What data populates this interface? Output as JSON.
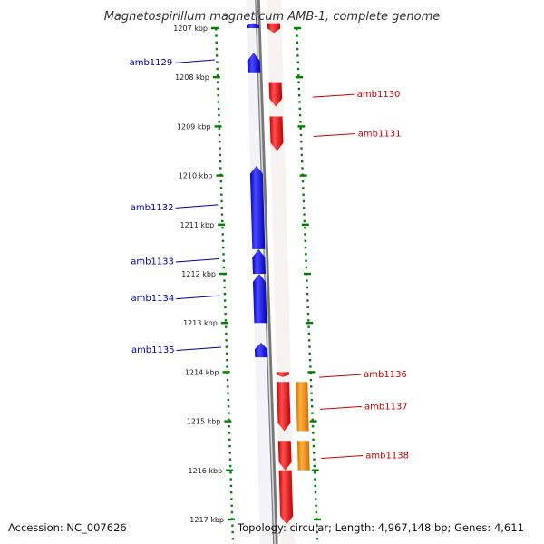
{
  "title": "Magnetospirillum magneticum AMB-1, complete genome",
  "accession": "Accession: NC_007626",
  "topology": "Topology: circular; Length: 4,967,148 bp; Genes: 4,611",
  "colors": {
    "minus_strand": "#0000ee",
    "plus_strand": "#ee0000",
    "plus_outer": "#ff8c00",
    "scale": "#008000",
    "backbone": "#808080",
    "label_minus": "#0000aa",
    "label_plus": "#cc0000"
  },
  "chart_data": {
    "type": "genome-map",
    "region_kbp": [
      1206.9,
      1217.1
    ],
    "scale_ticks_kbp": [
      1207,
      1208,
      1209,
      1210,
      1211,
      1212,
      1213,
      1214,
      1215,
      1216,
      1217
    ],
    "scale_labels": [
      "1207 kbp",
      "1208 kbp",
      "1209 kbp",
      "1210 kbp",
      "1211 kbp",
      "1212 kbp",
      "1213 kbp",
      "1214 kbp",
      "1215 kbp",
      "1216 kbp",
      "1217 kbp"
    ],
    "labeled_genes": [
      {
        "name": "amb1129",
        "strand": "minus",
        "start_kbp": 1207.5,
        "end_kbp": 1207.9
      },
      {
        "name": "amb1130",
        "strand": "plus",
        "start_kbp": 1208.1,
        "end_kbp": 1208.6
      },
      {
        "name": "amb1131",
        "strand": "plus",
        "start_kbp": 1208.8,
        "end_kbp": 1209.5
      },
      {
        "name": "amb1132",
        "strand": "minus",
        "start_kbp": 1209.8,
        "end_kbp": 1211.5
      },
      {
        "name": "amb1133",
        "strand": "minus",
        "start_kbp": 1211.5,
        "end_kbp": 1212.0
      },
      {
        "name": "amb1134",
        "strand": "minus",
        "start_kbp": 1212.0,
        "end_kbp": 1213.0
      },
      {
        "name": "amb1135",
        "strand": "minus",
        "start_kbp": 1213.4,
        "end_kbp": 1213.7
      },
      {
        "name": "amb1136",
        "strand": "plus",
        "start_kbp": 1214.0,
        "end_kbp": 1214.1
      },
      {
        "name": "amb1137",
        "strand": "plus",
        "start_kbp": 1214.2,
        "end_kbp": 1215.2
      },
      {
        "name": "amb1138",
        "strand": "plus",
        "start_kbp": 1215.4,
        "end_kbp": 1216.0
      }
    ],
    "extra_features": [
      {
        "ring": "minus",
        "start_kbp": 1206.9,
        "end_kbp": 1207.0
      },
      {
        "ring": "plus",
        "start_kbp": 1206.9,
        "end_kbp": 1207.1
      },
      {
        "ring": "outer",
        "start_kbp": 1214.2,
        "end_kbp": 1215.2
      },
      {
        "ring": "outer",
        "start_kbp": 1215.4,
        "end_kbp": 1216.0
      },
      {
        "ring": "plus",
        "start_kbp": 1216.0,
        "end_kbp": 1217.1
      }
    ]
  }
}
